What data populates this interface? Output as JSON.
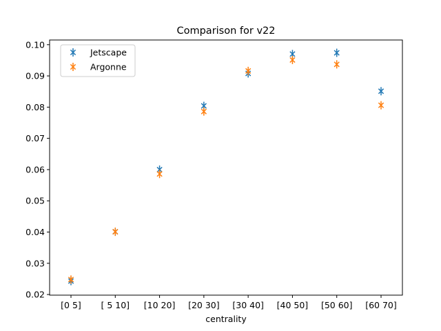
{
  "chart_data": {
    "type": "scatter",
    "title": "Comparison for v22",
    "xlabel": "centrality",
    "ylabel": "",
    "categories": [
      "[0 5]",
      "[ 5 10]",
      "[10 20]",
      "[20 30]",
      "[30 40]",
      "[40 50]",
      "[50 60]",
      "[60 70]"
    ],
    "yticks": [
      "0.02",
      "0.03",
      "0.04",
      "0.05",
      "0.06",
      "0.07",
      "0.08",
      "0.09",
      "0.10"
    ],
    "ylim": [
      0.0198,
      0.1015
    ],
    "grid": false,
    "legend_position": "top-left",
    "marker": "x with error bars",
    "series": [
      {
        "name": "Jetscape",
        "color": "#1f77b4",
        "values": [
          0.0243,
          0.0401,
          0.06,
          0.0804,
          0.0908,
          0.097,
          0.0974,
          0.0851
        ],
        "errors": [
          0.0004,
          0.0003,
          0.0003,
          0.0004,
          0.0004,
          0.0004,
          0.0005,
          0.0005
        ]
      },
      {
        "name": "Argonne",
        "color": "#ff7f0e",
        "values": [
          0.0248,
          0.0401,
          0.0586,
          0.0786,
          0.0916,
          0.0951,
          0.0937,
          0.0806
        ],
        "errors": [
          0.0003,
          0.0003,
          0.0003,
          0.0003,
          0.0004,
          0.0004,
          0.0004,
          0.0004
        ]
      }
    ]
  }
}
